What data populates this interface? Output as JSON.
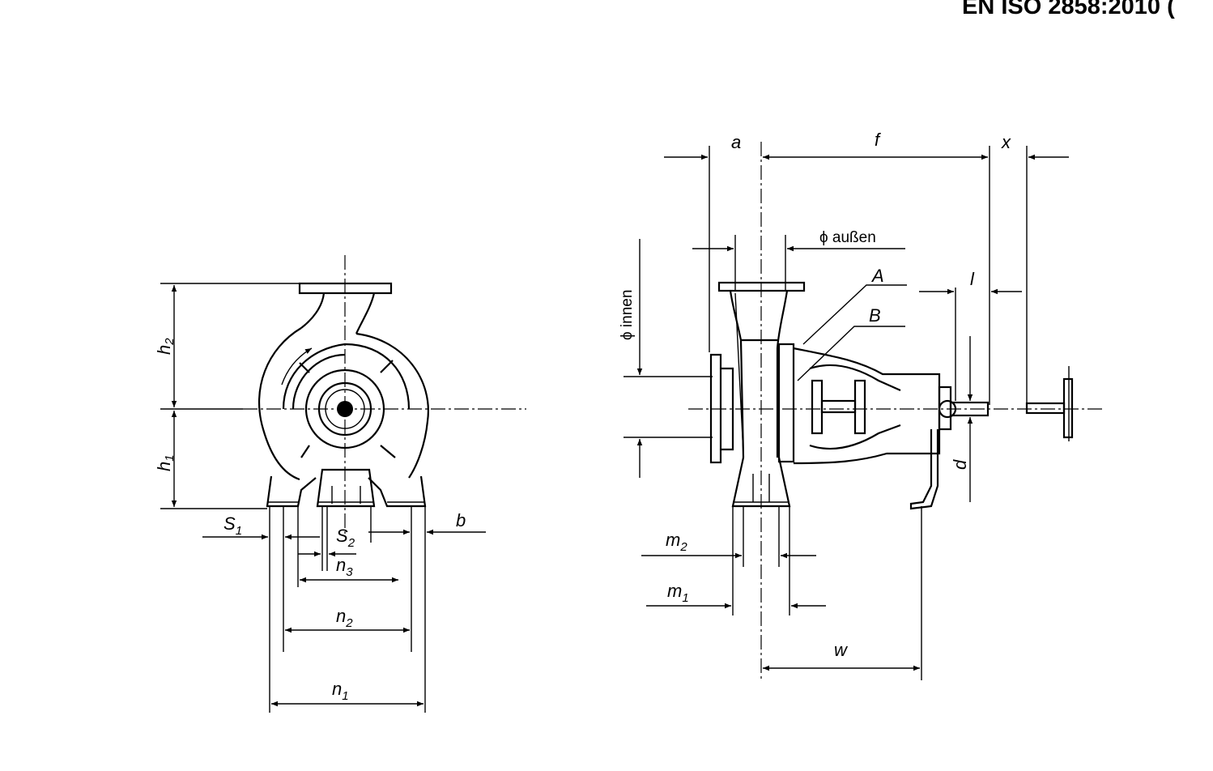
{
  "header": {
    "standard_ref": "EN ISO 2858:2010 ("
  },
  "front_view": {
    "labels": {
      "h2_main": "h",
      "h2_sub": "2",
      "h1_main": "h",
      "h1_sub": "1",
      "s1_main": "S",
      "s1_sub": "1",
      "s2_main": "S",
      "s2_sub": "2",
      "b": "b",
      "n3_main": "n",
      "n3_sub": "3",
      "n2_main": "n",
      "n2_sub": "2",
      "n1_main": "n",
      "n1_sub": "1"
    }
  },
  "side_view": {
    "labels": {
      "a": "a",
      "f": "f",
      "x": "x",
      "phi_aussen": "ϕ außen",
      "phi_innen": "ϕ innen",
      "A": "A",
      "B": "B",
      "l": "l",
      "d": "d",
      "m2_main": "m",
      "m2_sub": "2",
      "m1_main": "m",
      "m1_sub": "1",
      "w": "w"
    }
  }
}
